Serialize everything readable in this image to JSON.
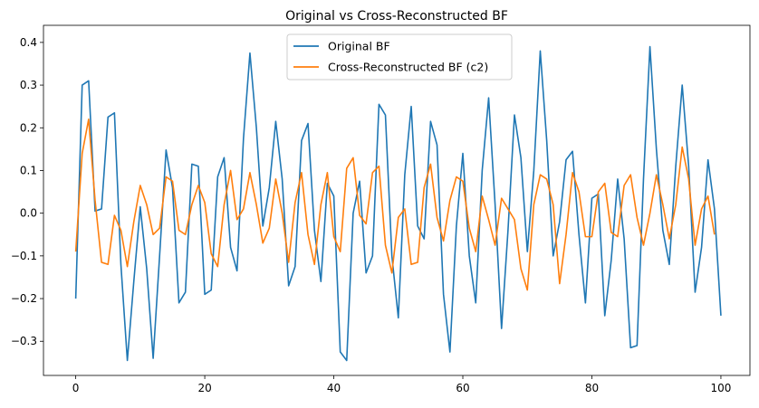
{
  "chart_data": {
    "type": "line",
    "title": "Original vs Cross-Reconstructed BF",
    "xlabel": "",
    "ylabel": "",
    "xlim": [
      -5,
      104.5
    ],
    "ylim": [
      -0.38,
      0.44
    ],
    "x_ticks": [
      0,
      20,
      40,
      60,
      80,
      100
    ],
    "y_ticks": [
      -0.3,
      -0.2,
      -0.1,
      0.0,
      0.1,
      0.2,
      0.3,
      0.4
    ],
    "y_tick_labels": [
      "−0.3",
      "−0.2",
      "−0.1",
      "0.0",
      "0.1",
      "0.2",
      "0.3",
      "0.4"
    ],
    "grid": false,
    "legend": "upper-center",
    "series": [
      {
        "name": "Original BF",
        "color": "#1f77b4",
        "values": [
          -0.2,
          0.3,
          0.31,
          0.005,
          0.01,
          0.225,
          0.235,
          -0.12,
          -0.345,
          -0.16,
          0.015,
          -0.13,
          -0.34,
          -0.1,
          0.148,
          0.06,
          -0.21,
          -0.185,
          0.115,
          0.11,
          -0.19,
          -0.18,
          0.085,
          0.13,
          -0.08,
          -0.135,
          0.175,
          0.375,
          0.2,
          -0.03,
          0.06,
          0.215,
          0.08,
          -0.17,
          -0.125,
          0.17,
          0.21,
          -0.04,
          -0.16,
          0.07,
          0.04,
          -0.325,
          -0.345,
          0.0,
          0.075,
          -0.14,
          -0.1,
          0.255,
          0.23,
          -0.1,
          -0.245,
          0.09,
          0.25,
          -0.03,
          -0.06,
          0.215,
          0.16,
          -0.19,
          -0.325,
          -0.03,
          0.14,
          -0.1,
          -0.21,
          0.1,
          0.27,
          0.02,
          -0.27,
          -0.04,
          0.23,
          0.13,
          -0.09,
          0.1,
          0.38,
          0.17,
          -0.1,
          -0.02,
          0.125,
          0.145,
          -0.05,
          -0.21,
          0.035,
          0.045,
          -0.24,
          -0.11,
          0.08,
          -0.06,
          -0.315,
          -0.31,
          0.08,
          0.39,
          0.15,
          -0.04,
          -0.12,
          0.11,
          0.3,
          0.11,
          -0.185,
          -0.08,
          0.125,
          0.01,
          -0.24
        ]
      },
      {
        "name": "Cross-Reconstructed BF (c2)",
        "color": "#ff7f0e",
        "values": [
          -0.09,
          0.14,
          0.22,
          0.03,
          -0.115,
          -0.12,
          -0.005,
          -0.04,
          -0.125,
          -0.02,
          0.065,
          0.02,
          -0.05,
          -0.035,
          0.085,
          0.075,
          -0.04,
          -0.05,
          0.02,
          0.065,
          0.025,
          -0.095,
          -0.125,
          0.02,
          0.1,
          -0.015,
          0.01,
          0.095,
          0.02,
          -0.07,
          -0.035,
          0.08,
          0.0,
          -0.115,
          0.025,
          0.095,
          -0.05,
          -0.12,
          0.02,
          0.095,
          -0.055,
          -0.09,
          0.105,
          0.13,
          -0.005,
          -0.025,
          0.095,
          0.11,
          -0.075,
          -0.14,
          -0.01,
          0.01,
          -0.12,
          -0.115,
          0.06,
          0.115,
          -0.01,
          -0.065,
          0.03,
          0.085,
          0.075,
          -0.035,
          -0.09,
          0.04,
          -0.015,
          -0.075,
          0.035,
          0.01,
          -0.015,
          -0.13,
          -0.18,
          0.02,
          0.09,
          0.08,
          0.02,
          -0.165,
          -0.05,
          0.095,
          0.05,
          -0.055,
          -0.055,
          0.05,
          0.07,
          -0.045,
          -0.055,
          0.065,
          0.09,
          -0.01,
          -0.075,
          0.0,
          0.09,
          0.02,
          -0.06,
          0.02,
          0.155,
          0.08,
          -0.075,
          0.01,
          0.04,
          -0.05
        ]
      }
    ]
  }
}
